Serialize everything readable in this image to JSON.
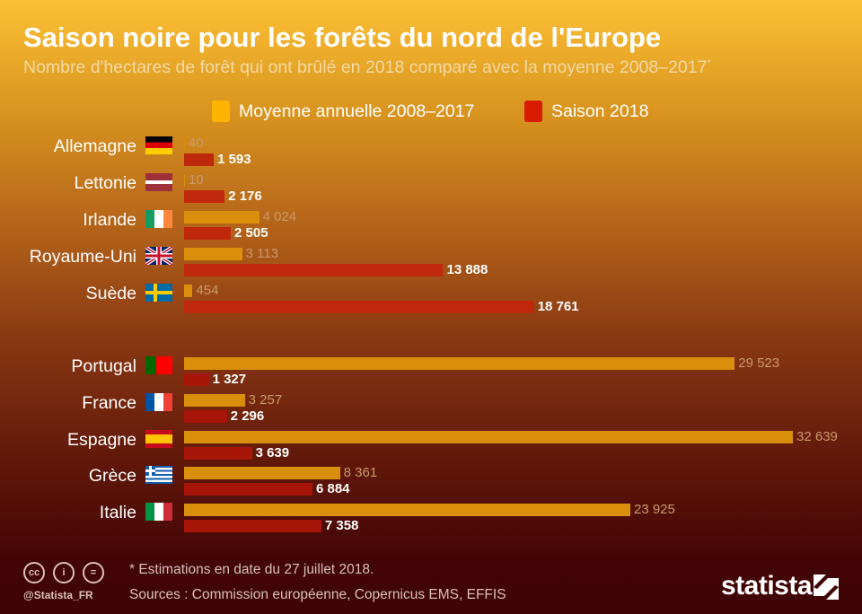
{
  "title": "Saison noire pour les forêts du nord de l'Europe",
  "subtitle": "Nombre d'hectares de forêt qui ont brûlé en 2018 comparé avec la moyenne 2008–2017",
  "subtitle_mark": "*",
  "colors": {
    "avg": "#d98f0b",
    "s2018": "#c0280b"
  },
  "chart_data": {
    "type": "bar",
    "orientation": "horizontal",
    "title": "Saison noire pour les forêts du nord de l'Europe",
    "categories": [
      "Allemagne",
      "Lettonie",
      "Irlande",
      "Royaume-Uni",
      "Suède",
      "Portugal",
      "France",
      "Espagne",
      "Grèce",
      "Italie"
    ],
    "series": [
      {
        "name": "Moyenne annuelle 2008–2017",
        "values": [
          40,
          10,
          4024,
          3113,
          454,
          29523,
          3257,
          32639,
          8361,
          23925
        ],
        "labels": [
          "40",
          "10",
          "4 024",
          "3 113",
          "454",
          "29 523",
          "3 257",
          "32 639",
          "8 361",
          "23 925"
        ]
      },
      {
        "name": "Saison 2018",
        "values": [
          1593,
          2176,
          2505,
          13888,
          18761,
          1327,
          2296,
          3639,
          6884,
          7358
        ],
        "labels": [
          "1 593",
          "2 176",
          "2 505",
          "13 888",
          "18 761",
          "1 327",
          "2 296",
          "3 639",
          "6 884",
          "7 358"
        ]
      }
    ],
    "flags": [
      "de",
      "lv",
      "ie",
      "gb",
      "se",
      "pt",
      "fr",
      "es",
      "gr",
      "it"
    ],
    "xlim": [
      0,
      32639
    ],
    "grid": false,
    "legend": "top"
  },
  "footer": {
    "note": "* Estimations en date du 27 juillet 2018.",
    "sources": "Sources : Commission européenne, Copernicus EMS, EFFIS",
    "handle": "@Statista_FR",
    "logo": "statista",
    "cc": [
      "cc",
      "i",
      "="
    ]
  }
}
